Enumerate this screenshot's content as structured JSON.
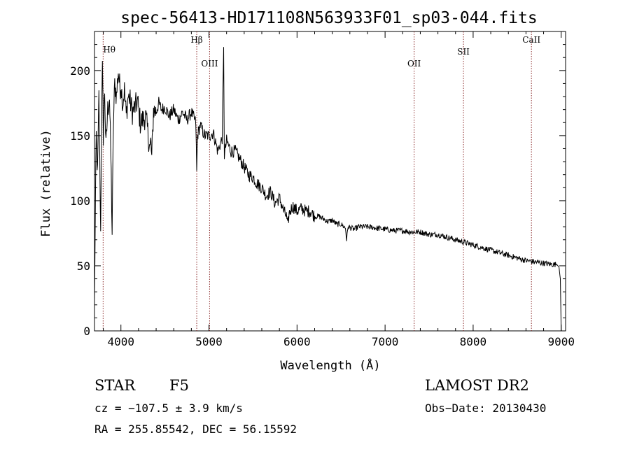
{
  "chart_data": {
    "type": "line",
    "title": "spec-56413-HD171108N563933F01_sp03-044.fits",
    "xlabel": "Wavelength (Å)",
    "ylabel": "Flux (relative)",
    "xlim": [
      3700,
      9050
    ],
    "ylim": [
      0,
      230
    ],
    "xticks": [
      4000,
      5000,
      6000,
      7000,
      8000,
      9000
    ],
    "xtick_labels": [
      "4000",
      "5000",
      "6000",
      "7000",
      "8000",
      "9000"
    ],
    "yticks": [
      0,
      50,
      100,
      150,
      200
    ],
    "ytick_labels": [
      "0",
      "50",
      "100",
      "150",
      "200"
    ],
    "grid": false,
    "series": [
      {
        "x": [
          3700,
          3710,
          3720,
          3735,
          3750,
          3760,
          3770,
          3780,
          3790,
          3800,
          3815,
          3830,
          3850,
          3870,
          3890,
          3900,
          3915,
          3930,
          3950,
          3970,
          3990,
          4000,
          4020,
          4040,
          4060,
          4080,
          4100,
          4130,
          4160,
          4190,
          4220,
          4250,
          4280,
          4310,
          4330,
          4340,
          4350,
          4370,
          4400,
          4430,
          4460,
          4500,
          4550,
          4600,
          4650,
          4700,
          4750,
          4800,
          4850,
          4861,
          4870,
          4900,
          4950,
          5000,
          5050,
          5100,
          5150,
          5167,
          5175,
          5200,
          5250,
          5300,
          5350,
          5400,
          5450,
          5500,
          5550,
          5600,
          5650,
          5700,
          5750,
          5800,
          5850,
          5880,
          5893,
          5910,
          5950,
          6000,
          6050,
          6100,
          6150,
          6200,
          6250,
          6300,
          6350,
          6400,
          6450,
          6500,
          6550,
          6563,
          6580,
          6650,
          6700,
          6800,
          6900,
          7000,
          7100,
          7200,
          7300,
          7400,
          7500,
          7600,
          7700,
          7800,
          7900,
          8000,
          8100,
          8200,
          8300,
          8400,
          8500,
          8600,
          8700,
          8800,
          8900,
          8950,
          8975,
          8990,
          9000
        ],
        "y": [
          20,
          95,
          150,
          120,
          180,
          130,
          75,
          160,
          200,
          150,
          185,
          140,
          170,
          180,
          120,
          75,
          160,
          190,
          180,
          200,
          185,
          190,
          175,
          185,
          165,
          180,
          178,
          168,
          172,
          176,
          160,
          162,
          165,
          150,
          140,
          145,
          132,
          170,
          168,
          175,
          170,
          172,
          165,
          170,
          162,
          168,
          162,
          168,
          160,
          122,
          150,
          158,
          150,
          150,
          152,
          138,
          148,
          215,
          135,
          146,
          138,
          138,
          132,
          126,
          120,
          118,
          113,
          110,
          104,
          107,
          98,
          102,
          92,
          88,
          80,
          90,
          96,
          92,
          94,
          92,
          92,
          88,
          88,
          86,
          84,
          85,
          82,
          82,
          79,
          70,
          80,
          78,
          80,
          80,
          79,
          78,
          77,
          77,
          76,
          76,
          74,
          74,
          72,
          70,
          68,
          66,
          64,
          62,
          60,
          58,
          56,
          54,
          53,
          52,
          51,
          51,
          49,
          40,
          0
        ]
      }
    ],
    "line_markers": [
      {
        "name": "Hθ",
        "x": 3798
      },
      {
        "name": "Hβ",
        "x": 4861
      },
      {
        "name": "OIII",
        "x": 5007
      },
      {
        "name": "OII",
        "x": 7330
      },
      {
        "name": "SII",
        "x": 7890
      },
      {
        "name": "CaII",
        "x": 8662
      }
    ],
    "line_marker_color": "#8b2a2a"
  },
  "info": {
    "object_class": "STAR",
    "subclass": "F5",
    "survey": "LAMOST DR2",
    "cz": "cz = −107.5 ± 3.9 km/s",
    "obs_date": "Obs−Date: 20130430",
    "coords": "RA = 255.85542, DEC =  56.15592"
  }
}
